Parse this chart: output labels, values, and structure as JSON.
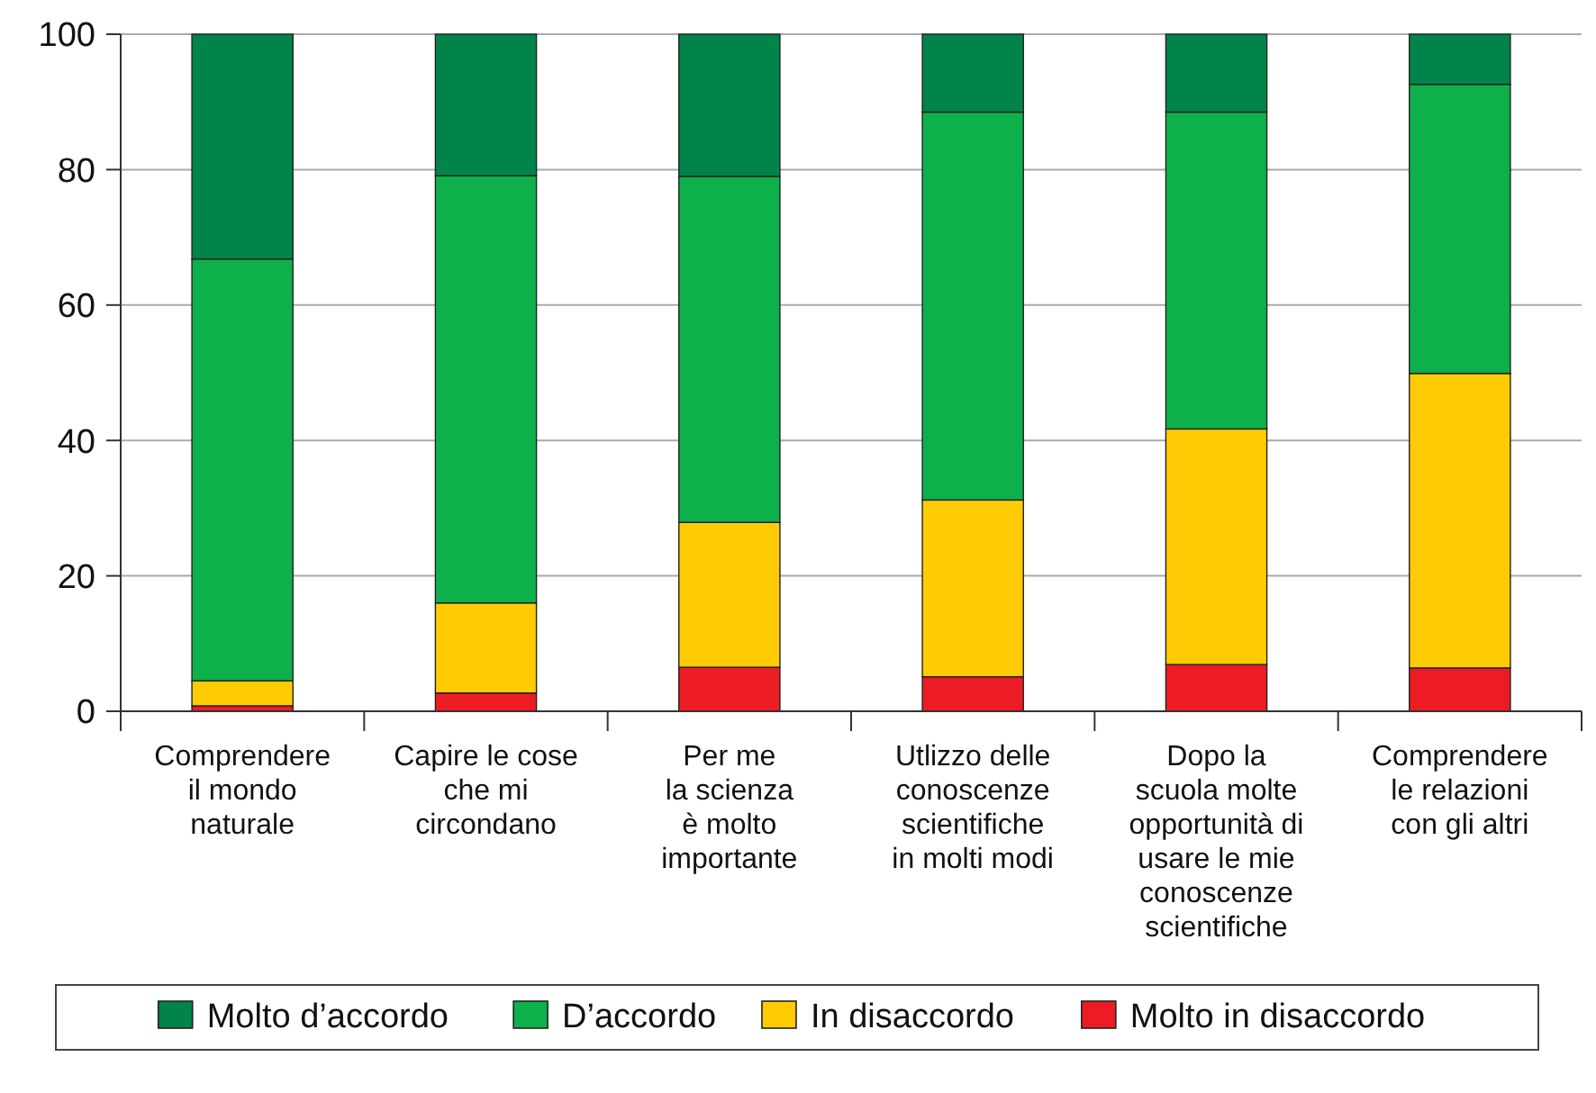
{
  "chart_data": {
    "type": "bar",
    "stacked": true,
    "categories": [
      "Comprendere\nil mondo\nnaturale",
      "Capire le cose\nche mi\ncircondano",
      "Per me\nla scienza\nè molto\nimportante",
      "Utlizzo delle\nconoscenze\nscientifiche\nin molti modi",
      "Dopo la\nscuola molte\nopportunità di\nusare le mie\nconoscenze\nscientifiche",
      "Comprendere\nle relazioni\ncon gli altri"
    ],
    "series": [
      {
        "name": "Molto in disaccordo",
        "color": "#ed1c24",
        "values": [
          0.8,
          2.7,
          6.5,
          5.1,
          6.9,
          6.4
        ]
      },
      {
        "name": "In disaccordo",
        "color": "#ffcb05",
        "values": [
          3.7,
          13.3,
          21.4,
          26.1,
          34.8,
          43.5
        ]
      },
      {
        "name": "D’accordo",
        "color": "#0db04b",
        "values": [
          62.3,
          63.1,
          51.1,
          57.3,
          46.8,
          42.7
        ]
      },
      {
        "name": "Molto d’accordo",
        "color": "#00844a",
        "values": [
          33.2,
          20.9,
          21,
          11.5,
          11.5,
          7.4
        ]
      }
    ],
    "ylim": [
      0,
      100
    ],
    "yticks": [
      0,
      20,
      40,
      60,
      80,
      100
    ],
    "grid": "y",
    "legend": "bottom"
  }
}
